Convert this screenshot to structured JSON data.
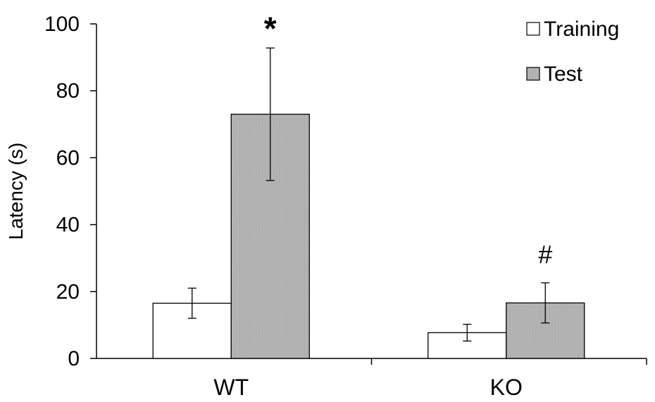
{
  "chart_data": {
    "type": "bar",
    "title": "",
    "xlabel": "",
    "ylabel": "Latency (s)",
    "ylim": [
      0,
      100
    ],
    "yticks": [
      0,
      20,
      40,
      60,
      80,
      100
    ],
    "grid": false,
    "legend_position": "top-right",
    "categories": [
      "WT",
      "KO"
    ],
    "series": [
      {
        "name": "Training",
        "color": "#ffffff",
        "values": [
          16.5,
          7.7
        ],
        "errors": [
          4.5,
          2.5
        ]
      },
      {
        "name": "Test",
        "color": "#b3b3b3",
        "pattern": "fine-stipple",
        "values": [
          73.0,
          16.6
        ],
        "errors": [
          19.8,
          6.0
        ]
      }
    ],
    "annotations": [
      {
        "text": "*",
        "category": "WT",
        "series": "Test"
      },
      {
        "text": "#",
        "category": "KO",
        "series": "Test"
      }
    ]
  }
}
